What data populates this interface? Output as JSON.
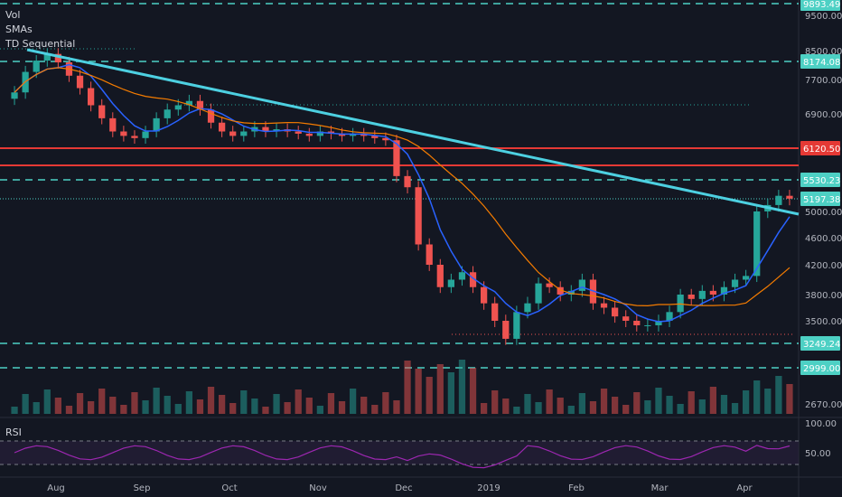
{
  "chart_data": {
    "type": "candlestick",
    "indicators": [
      "Vol",
      "SMAs",
      "TD Sequential"
    ],
    "rsi_label": "RSI",
    "x_ticks": [
      "Aug",
      "Sep",
      "Oct",
      "Nov",
      "Dec",
      "2019",
      "Feb",
      "Mar",
      "Apr"
    ],
    "y_ticks": [
      9500.0,
      8500.0,
      7700.0,
      6900.0,
      5530.23,
      5000.0,
      4600.0,
      4200.0,
      3800.0,
      3500.0,
      3249.24,
      2999.0,
      2670.0
    ],
    "y_tick_labels": [
      "9500.00",
      "8500.00",
      "7700.00",
      "6900.00",
      "5000.00",
      "4600.00",
      "4200.00",
      "3800.00",
      "3500.00",
      "2670.00"
    ],
    "price_badges": [
      {
        "label": "9893.49",
        "color": "#4dd0c4"
      },
      {
        "label": "8174.08",
        "color": "#4dd0c4"
      },
      {
        "label": "6120.50",
        "color": "#e53935"
      },
      {
        "label": "5530.23",
        "color": "#4dd0c4"
      },
      {
        "label": "5197.38",
        "color": "#4dd0c4"
      },
      {
        "label": "3249.24",
        "color": "#4dd0c4"
      },
      {
        "label": "2999.00",
        "color": "#4dd0c4"
      }
    ],
    "rsi_ticks": [
      "100.00",
      "50.00"
    ],
    "series_close": [
      7400,
      7900,
      8200,
      8400,
      8150,
      7800,
      7500,
      7100,
      6800,
      6500,
      6400,
      6350,
      6500,
      6800,
      7000,
      7100,
      7200,
      7000,
      6700,
      6500,
      6400,
      6500,
      6600,
      6500,
      6550,
      6500,
      6450,
      6400,
      6500,
      6450,
      6400,
      6450,
      6400,
      6350,
      6300,
      5600,
      5400,
      4500,
      4200,
      3900,
      4000,
      4100,
      3900,
      3700,
      3500,
      3300,
      3600,
      3700,
      3950,
      3900,
      3800,
      3850,
      4000,
      3700,
      3650,
      3550,
      3500,
      3450,
      3450,
      3500,
      3600,
      3800,
      3750,
      3850,
      3800,
      3900,
      4000,
      4050,
      5000,
      5100,
      5250,
      5200
    ],
    "colors": {
      "up": "#26a69a",
      "down": "#ef5350",
      "trendline": "#4dd0e1",
      "resistance": "#e53935",
      "sma_fast": "#2962ff",
      "sma_slow": "#f57c00",
      "rsi": "#9c27b0",
      "dashed": "#26a69a"
    }
  }
}
